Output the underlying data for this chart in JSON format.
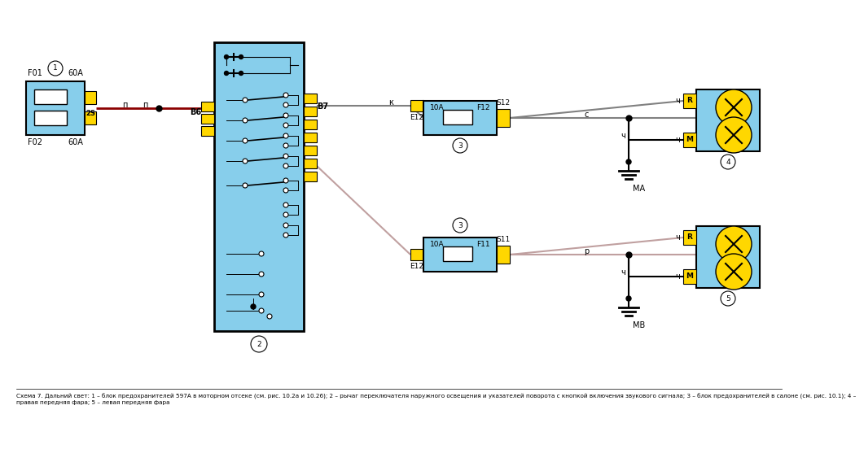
{
  "bg_color": "#ffffff",
  "light_blue": "#87CEEB",
  "yellow": "#FFD700",
  "wire_red": "#8B0000",
  "wire_brown": "#808080",
  "wire_pink": "#C0A0A0",
  "wire_black": "#000000",
  "caption": "Схема 7. Дальний свет: 1 – блок предохранителей 597А в моторном отсеке (см. рис. 10.2а и 10.26); 2 – рычаг переключателя наружного освещения и указателей поворота с кнопкой включения звукового сигнала; 3 – блок предохранителей в салоне (см. рис. 10.1); 4 –\nправая передняя фара; 5 – левая передняя фара"
}
